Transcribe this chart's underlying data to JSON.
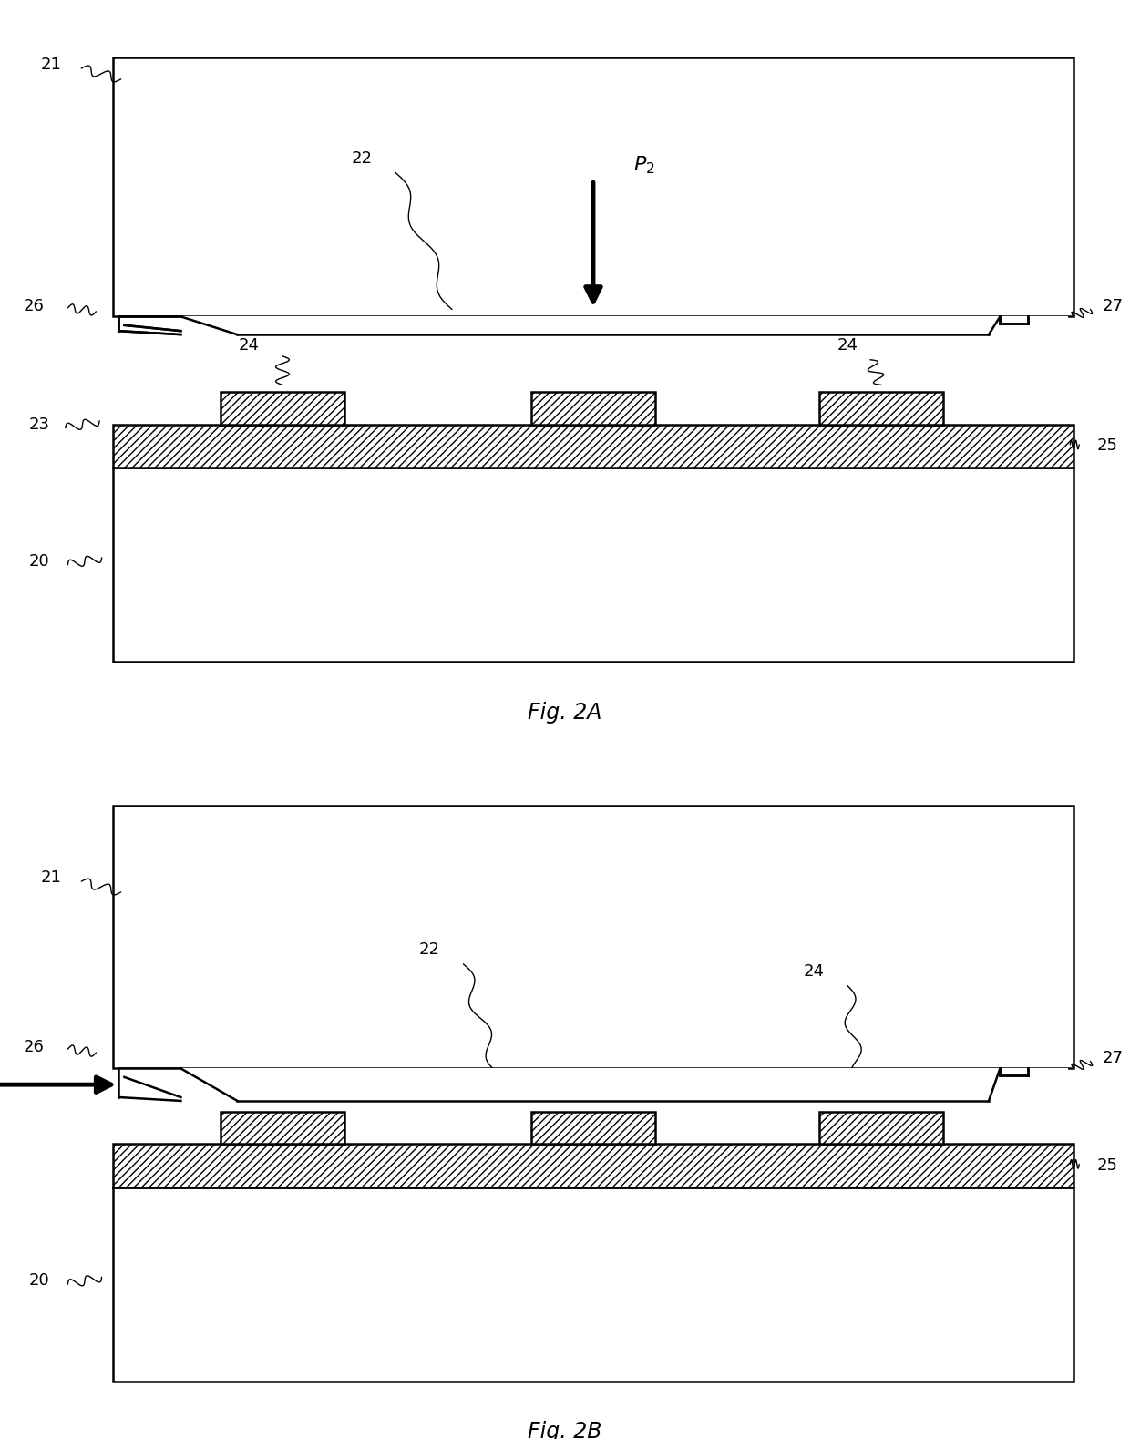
{
  "background_color": "#ffffff",
  "line_color": "#000000",
  "fig_width": 12.4,
  "fig_height": 15.79,
  "label_fontsize": 13,
  "fig_label_fontsize": 17,
  "lw": 1.8,
  "lw_thick": 3.5
}
